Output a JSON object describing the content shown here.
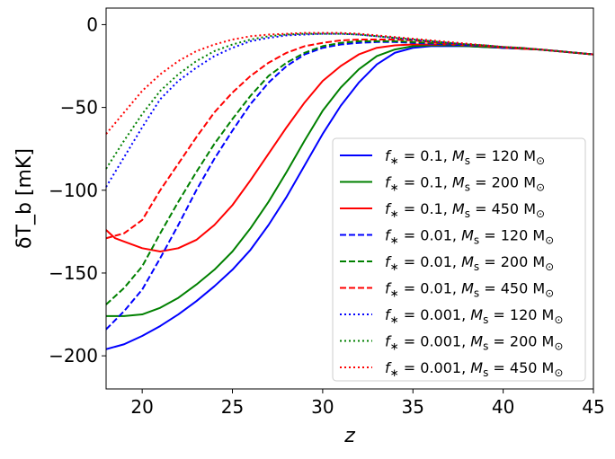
{
  "chart_data": {
    "type": "line",
    "title": "",
    "xlabel": "z",
    "ylabel": "δT_b [mK]",
    "xlim": [
      18,
      45
    ],
    "ylim": [
      -220,
      10
    ],
    "xticks": [
      20,
      25,
      30,
      35,
      40,
      45
    ],
    "xtick_labels": [
      "20",
      "25",
      "30",
      "35",
      "40",
      "45"
    ],
    "yticks": [
      0,
      -50,
      -100,
      -150,
      -200
    ],
    "ytick_labels": [
      "0",
      "−50",
      "−100",
      "−150",
      "−200"
    ],
    "grid": false,
    "legend_position": "lower-right",
    "colors": {
      "blue": "#0000ff",
      "green": "#008000",
      "red": "#ff0000"
    },
    "series": [
      {
        "name": "f∗ = 0.1, M_s = 120 M⊙",
        "legend": {
          "f": "0.1",
          "m": "120"
        },
        "color": "#0000ff",
        "style": "solid",
        "x": [
          18,
          19,
          20,
          21,
          22,
          23,
          24,
          25,
          26,
          27,
          28,
          29,
          30,
          31,
          32,
          33,
          34,
          35,
          36,
          37,
          38,
          39,
          40,
          41,
          42,
          43,
          44,
          45
        ],
        "y": [
          -196,
          -193,
          -188,
          -182,
          -175,
          -167,
          -158,
          -148,
          -136,
          -121,
          -104,
          -85,
          -66,
          -49,
          -35,
          -24,
          -17,
          -14,
          -13,
          -13,
          -13,
          -13.5,
          -14,
          -14.5,
          -15,
          -16,
          -17,
          -18
        ]
      },
      {
        "name": "f∗ = 0.1, M_s = 200 M⊙",
        "legend": {
          "f": "0.1",
          "m": "200"
        },
        "color": "#008000",
        "style": "solid",
        "x": [
          18,
          19,
          20,
          21,
          22,
          23,
          24,
          25,
          26,
          27,
          28,
          29,
          30,
          31,
          32,
          33,
          34,
          35,
          36,
          37,
          38,
          39,
          40,
          41,
          42,
          43,
          44,
          45
        ],
        "y": [
          -176,
          -176,
          -175,
          -171,
          -165,
          -157,
          -148,
          -137,
          -123,
          -107,
          -89,
          -70,
          -52,
          -38,
          -27,
          -19,
          -15,
          -13,
          -12.5,
          -12.5,
          -13,
          -13.5,
          -14,
          -14.5,
          -15,
          -16,
          -17,
          -18
        ]
      },
      {
        "name": "f∗ = 0.1, M_s = 450 M⊙",
        "legend": {
          "f": "0.1",
          "m": "450"
        },
        "color": "#ff0000",
        "style": "solid",
        "x": [
          18,
          18.5,
          19,
          20,
          21,
          22,
          23,
          24,
          25,
          26,
          27,
          28,
          29,
          30,
          31,
          32,
          33,
          34,
          35,
          36,
          37,
          38,
          39,
          40,
          41,
          42,
          43,
          44,
          45
        ],
        "y": [
          -124,
          -129,
          -131,
          -135,
          -137,
          -135,
          -130,
          -121,
          -109,
          -94,
          -78,
          -62,
          -47,
          -34,
          -25,
          -18,
          -14,
          -12.5,
          -12,
          -12,
          -12,
          -12.5,
          -13,
          -14,
          -14.5,
          -15,
          -16,
          -17,
          -18
        ]
      },
      {
        "name": "f∗ = 0.01, M_s = 120 M⊙",
        "legend": {
          "f": "0.01",
          "m": "120"
        },
        "color": "#0000ff",
        "style": "dashed",
        "x": [
          18,
          19,
          20,
          21,
          22,
          23,
          24,
          25,
          26,
          27,
          28,
          29,
          30,
          31,
          32,
          33,
          34,
          35,
          36,
          37,
          38,
          39,
          40,
          41,
          42,
          43,
          44,
          45
        ],
        "y": [
          -184,
          -173,
          -160,
          -141,
          -121,
          -100,
          -81,
          -64,
          -48,
          -35,
          -25,
          -18,
          -14,
          -12,
          -11,
          -10.5,
          -10.5,
          -11,
          -11.5,
          -12,
          -12.5,
          -13,
          -14,
          -14.5,
          -15,
          -16,
          -17,
          -18
        ]
      },
      {
        "name": "f∗ = 0.01, M_s = 200 M⊙",
        "legend": {
          "f": "0.01",
          "m": "200"
        },
        "color": "#008000",
        "style": "dashed",
        "x": [
          18,
          19,
          20,
          21,
          22,
          23,
          24,
          25,
          26,
          27,
          28,
          29,
          30,
          31,
          32,
          33,
          34,
          35,
          36,
          37,
          38,
          39,
          40,
          41,
          42,
          43,
          44,
          45
        ],
        "y": [
          -169,
          -159,
          -146,
          -126,
          -107,
          -89,
          -72,
          -57,
          -43,
          -31,
          -23,
          -17,
          -13,
          -11,
          -10,
          -10,
          -10,
          -10.5,
          -11,
          -11.5,
          -12,
          -13,
          -13.5,
          -14.5,
          -15,
          -16,
          -17,
          -18
        ]
      },
      {
        "name": "f∗ = 0.01, M_s = 450 M⊙",
        "legend": {
          "f": "0.01",
          "m": "450"
        },
        "color": "#ff0000",
        "style": "dashed",
        "x": [
          18,
          19,
          20,
          21,
          22,
          23,
          24,
          25,
          26,
          27,
          28,
          29,
          30,
          31,
          32,
          33,
          34,
          35,
          36,
          37,
          38,
          39,
          40,
          41,
          42,
          43,
          44,
          45
        ],
        "y": [
          -129,
          -126,
          -118,
          -100,
          -84,
          -68,
          -53,
          -41,
          -31,
          -23,
          -17,
          -13,
          -11,
          -9.5,
          -9,
          -9,
          -9,
          -9.5,
          -10.5,
          -11.5,
          -12,
          -13,
          -13.5,
          -14.5,
          -15,
          -16,
          -17,
          -18
        ]
      },
      {
        "name": "f∗ = 0.001, M_s = 120 M⊙",
        "legend": {
          "f": "0.001",
          "m": "120"
        },
        "color": "#0000ff",
        "style": "dotted",
        "x": [
          18,
          19,
          20,
          21,
          22,
          23,
          24,
          25,
          26,
          27,
          28,
          29,
          30,
          31,
          32,
          33,
          34,
          35,
          36,
          37,
          38,
          39,
          40,
          41,
          42,
          43,
          44,
          45
        ],
        "y": [
          -98,
          -80,
          -62,
          -45,
          -34,
          -26,
          -19,
          -14,
          -10,
          -8,
          -6.5,
          -6,
          -5.5,
          -5.5,
          -6,
          -7,
          -8,
          -9,
          -10,
          -11,
          -12,
          -12.5,
          -13.5,
          -14,
          -15,
          -16,
          -17,
          -18
        ]
      },
      {
        "name": "f∗ = 0.001, M_s = 200 M⊙",
        "legend": {
          "f": "0.001",
          "m": "200"
        },
        "color": "#008000",
        "style": "dotted",
        "x": [
          18,
          19,
          20,
          21,
          22,
          23,
          24,
          25,
          26,
          27,
          28,
          29,
          30,
          31,
          32,
          33,
          34,
          35,
          36,
          37,
          38,
          39,
          40,
          41,
          42,
          43,
          44,
          45
        ],
        "y": [
          -87,
          -70,
          -54,
          -40,
          -30,
          -22,
          -16,
          -12,
          -9,
          -7,
          -6,
          -5.5,
          -5.5,
          -5.5,
          -6,
          -7,
          -8,
          -9,
          -10,
          -11,
          -12,
          -12.5,
          -13.5,
          -14,
          -15,
          -16,
          -17,
          -18
        ]
      },
      {
        "name": "f∗ = 0.001, M_s = 450 M⊙",
        "legend": {
          "f": "0.001",
          "m": "450"
        },
        "color": "#ff0000",
        "style": "dotted",
        "x": [
          18,
          19,
          20,
          21,
          22,
          23,
          24,
          25,
          26,
          27,
          28,
          29,
          30,
          31,
          32,
          33,
          34,
          35,
          36,
          37,
          38,
          39,
          40,
          41,
          42,
          43,
          44,
          45
        ],
        "y": [
          -66,
          -53,
          -40,
          -30,
          -22,
          -16,
          -12,
          -9,
          -7,
          -6,
          -5.5,
          -5,
          -5,
          -5,
          -5.5,
          -6.5,
          -7.5,
          -8.5,
          -9.5,
          -10.5,
          -11.5,
          -12.5,
          -13.5,
          -14,
          -15,
          -16,
          -17,
          -18
        ]
      }
    ]
  }
}
